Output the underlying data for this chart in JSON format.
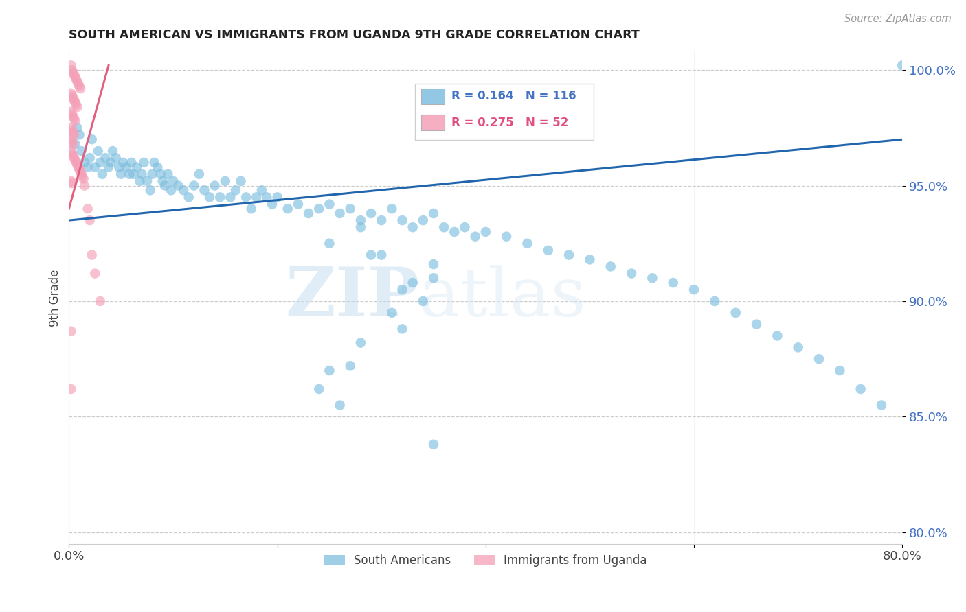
{
  "title": "SOUTH AMERICAN VS IMMIGRANTS FROM UGANDA 9TH GRADE CORRELATION CHART",
  "source": "Source: ZipAtlas.com",
  "ylabel": "9th Grade",
  "blue_color": "#7fbfdf",
  "pink_color": "#f4a0b8",
  "blue_line_color": "#2166ac",
  "pink_line_color": "#e06080",
  "legend_blue_R": "0.164",
  "legend_blue_N": "116",
  "legend_pink_R": "0.275",
  "legend_pink_N": "52",
  "watermark_zip": "ZIP",
  "watermark_atlas": "atlas",
  "xmin": 0.0,
  "xmax": 0.8,
  "ymin": 0.795,
  "ymax": 1.008,
  "ytick_values": [
    1.0,
    0.95,
    0.9,
    0.85,
    0.8
  ],
  "ytick_labels": [
    "100.0%",
    "95.0%",
    "90.0%",
    "85.0%",
    "80.0%"
  ],
  "xtick_values": [
    0.0,
    0.2,
    0.4,
    0.6,
    0.8
  ],
  "xtick_labels": [
    "0.0%",
    "",
    "",
    "",
    "80.0%"
  ],
  "blue_line_x0": 0.0,
  "blue_line_x1": 0.8,
  "blue_line_y0": 0.935,
  "blue_line_y1": 0.97,
  "pink_line_x0": 0.0,
  "pink_line_x1": 0.038,
  "pink_line_y0": 0.94,
  "pink_line_y1": 1.002,
  "blue_x": [
    0.006,
    0.008,
    0.01,
    0.012,
    0.015,
    0.018,
    0.02,
    0.022,
    0.025,
    0.028,
    0.03,
    0.032,
    0.035,
    0.038,
    0.04,
    0.042,
    0.045,
    0.048,
    0.05,
    0.052,
    0.055,
    0.058,
    0.06,
    0.062,
    0.065,
    0.068,
    0.07,
    0.072,
    0.075,
    0.078,
    0.08,
    0.082,
    0.085,
    0.088,
    0.09,
    0.092,
    0.095,
    0.098,
    0.1,
    0.105,
    0.11,
    0.115,
    0.12,
    0.125,
    0.13,
    0.135,
    0.14,
    0.145,
    0.15,
    0.155,
    0.16,
    0.165,
    0.17,
    0.175,
    0.18,
    0.185,
    0.19,
    0.195,
    0.2,
    0.21,
    0.22,
    0.23,
    0.24,
    0.25,
    0.26,
    0.27,
    0.28,
    0.29,
    0.3,
    0.31,
    0.32,
    0.33,
    0.34,
    0.35,
    0.36,
    0.37,
    0.38,
    0.39,
    0.4,
    0.42,
    0.44,
    0.46,
    0.48,
    0.5,
    0.52,
    0.54,
    0.56,
    0.58,
    0.6,
    0.62,
    0.64,
    0.66,
    0.68,
    0.7,
    0.72,
    0.74,
    0.76,
    0.78,
    0.8,
    0.35,
    0.25,
    0.3,
    0.32,
    0.28,
    0.32,
    0.34,
    0.29,
    0.31,
    0.33,
    0.35,
    0.25,
    0.24,
    0.26,
    0.27,
    0.28,
    0.35
  ],
  "blue_y": [
    0.968,
    0.975,
    0.972,
    0.965,
    0.96,
    0.958,
    0.962,
    0.97,
    0.958,
    0.965,
    0.96,
    0.955,
    0.962,
    0.958,
    0.96,
    0.965,
    0.962,
    0.958,
    0.955,
    0.96,
    0.958,
    0.955,
    0.96,
    0.955,
    0.958,
    0.952,
    0.955,
    0.96,
    0.952,
    0.948,
    0.955,
    0.96,
    0.958,
    0.955,
    0.952,
    0.95,
    0.955,
    0.948,
    0.952,
    0.95,
    0.948,
    0.945,
    0.95,
    0.955,
    0.948,
    0.945,
    0.95,
    0.945,
    0.952,
    0.945,
    0.948,
    0.952,
    0.945,
    0.94,
    0.945,
    0.948,
    0.945,
    0.942,
    0.945,
    0.94,
    0.942,
    0.938,
    0.94,
    0.942,
    0.938,
    0.94,
    0.935,
    0.938,
    0.935,
    0.94,
    0.935,
    0.932,
    0.935,
    0.938,
    0.932,
    0.93,
    0.932,
    0.928,
    0.93,
    0.928,
    0.925,
    0.922,
    0.92,
    0.918,
    0.915,
    0.912,
    0.91,
    0.908,
    0.905,
    0.9,
    0.895,
    0.89,
    0.885,
    0.88,
    0.875,
    0.87,
    0.862,
    0.855,
    1.002,
    0.91,
    0.925,
    0.92,
    0.905,
    0.932,
    0.888,
    0.9,
    0.92,
    0.895,
    0.908,
    0.916,
    0.87,
    0.862,
    0.855,
    0.872,
    0.882,
    0.838
  ],
  "pink_x": [
    0.002,
    0.003,
    0.004,
    0.005,
    0.006,
    0.007,
    0.008,
    0.009,
    0.01,
    0.011,
    0.002,
    0.003,
    0.004,
    0.005,
    0.006,
    0.007,
    0.008,
    0.002,
    0.003,
    0.004,
    0.005,
    0.006,
    0.002,
    0.003,
    0.004,
    0.005,
    0.002,
    0.003,
    0.004,
    0.002,
    0.003,
    0.004,
    0.005,
    0.006,
    0.007,
    0.008,
    0.009,
    0.01,
    0.011,
    0.012,
    0.013,
    0.014,
    0.002,
    0.003,
    0.015,
    0.018,
    0.02,
    0.022,
    0.025,
    0.03,
    0.002,
    0.002
  ],
  "pink_y": [
    1.002,
    1.0,
    0.999,
    0.998,
    0.997,
    0.996,
    0.995,
    0.994,
    0.993,
    0.992,
    0.99,
    0.989,
    0.988,
    0.987,
    0.986,
    0.985,
    0.984,
    0.982,
    0.981,
    0.98,
    0.979,
    0.978,
    0.975,
    0.974,
    0.973,
    0.972,
    0.97,
    0.969,
    0.968,
    0.965,
    0.964,
    0.963,
    0.962,
    0.961,
    0.96,
    0.959,
    0.958,
    0.957,
    0.956,
    0.955,
    0.954,
    0.953,
    0.952,
    0.951,
    0.95,
    0.94,
    0.935,
    0.92,
    0.912,
    0.9,
    0.887,
    0.862
  ]
}
